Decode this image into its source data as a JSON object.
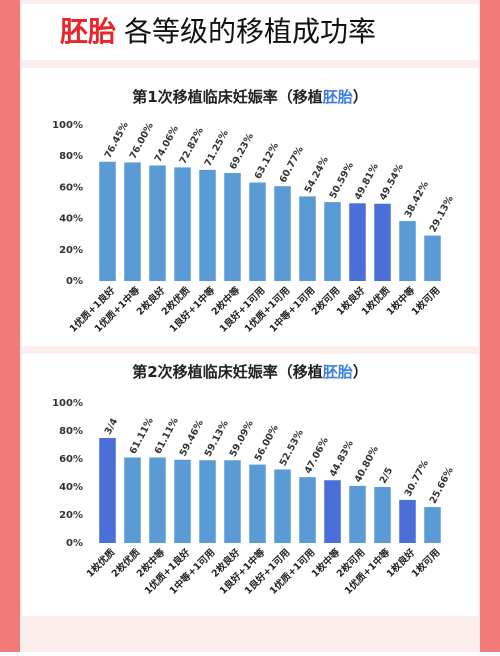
{
  "header": {
    "highlight": "胚胎",
    "text": "各等级的移植成功率"
  },
  "chart_data": [
    {
      "type": "bar",
      "title_parts": [
        "第1次移植临床妊娠率（移植",
        "胚胎",
        "）"
      ],
      "categories": [
        "1优质+1良好",
        "1优质+1中等",
        "2枚良好",
        "2枚优质",
        "1良好+1中等",
        "2枚中等",
        "1良好+1可用",
        "1优质+1可用",
        "1中等+1可用",
        "2枚可用",
        "1枚良好",
        "1枚优质",
        "1枚中等",
        "1枚可用"
      ],
      "values": [
        76.45,
        76.0,
        74.06,
        72.82,
        71.25,
        69.23,
        63.12,
        60.77,
        54.24,
        50.59,
        49.81,
        49.54,
        38.42,
        29.13
      ],
      "value_labels": [
        "76.45%",
        "76.00%",
        "74.06%",
        "72.82%",
        "71.25%",
        "69.23%",
        "63.12%",
        "60.77%",
        "54.24%",
        "50.59%",
        "49.81%",
        "49.54%",
        "38.42%",
        "29.13%"
      ],
      "colors": [
        "#5b9bd5",
        "#5b9bd5",
        "#5b9bd5",
        "#5b9bd5",
        "#5b9bd5",
        "#5b9bd5",
        "#5b9bd5",
        "#5b9bd5",
        "#5b9bd5",
        "#5b9bd5",
        "#4a6fd8",
        "#4a6fd8",
        "#5b9bd5",
        "#5b9bd5"
      ],
      "ylim": [
        0,
        100
      ],
      "yticks": [
        {
          "value": 0,
          "label": "0%"
        },
        {
          "value": 20,
          "label": "20%"
        },
        {
          "value": 40,
          "label": "40%"
        },
        {
          "value": 60,
          "label": "60%"
        },
        {
          "value": 80,
          "label": "80%"
        },
        {
          "value": 100,
          "label": "100%"
        }
      ],
      "grid": false
    },
    {
      "type": "bar",
      "title_parts": [
        "第2次移植临床妊娠率（移植",
        "胚胎",
        "）"
      ],
      "categories": [
        "1枚优质",
        "2枚优质",
        "2枚中等",
        "1优质+1良好",
        "1中等+1可用",
        "2枚良好",
        "1良好+1中等",
        "1良好+1可用",
        "1优质+1可用",
        "1枚中等",
        "2枚可用",
        "1优质+1中等",
        "1枚良好",
        "1枚可用"
      ],
      "values": [
        75,
        61.11,
        61.11,
        59.46,
        59.13,
        59.09,
        56.0,
        52.53,
        47.06,
        44.83,
        40.8,
        40,
        30.77,
        25.66
      ],
      "value_labels": [
        "3/4",
        "61.11%",
        "61.11%",
        "59.46%",
        "59.13%",
        "59.09%",
        "56.00%",
        "52.53%",
        "47.06%",
        "44.83%",
        "40.80%",
        "2/5",
        "30.77%",
        "25.66%"
      ],
      "colors": [
        "#4a6fd8",
        "#5b9bd5",
        "#5b9bd5",
        "#5b9bd5",
        "#5b9bd5",
        "#5b9bd5",
        "#5b9bd5",
        "#5b9bd5",
        "#5b9bd5",
        "#4a6fd8",
        "#5b9bd5",
        "#5b9bd5",
        "#4a6fd8",
        "#5b9bd5"
      ],
      "ylim": [
        0,
        100
      ],
      "yticks": [
        {
          "value": 0,
          "label": "0%"
        },
        {
          "value": 20,
          "label": "20%"
        },
        {
          "value": 40,
          "label": "40%"
        },
        {
          "value": 60,
          "label": "60%"
        },
        {
          "value": 80,
          "label": "80%"
        },
        {
          "value": 100,
          "label": "100%"
        }
      ],
      "grid": false
    }
  ]
}
